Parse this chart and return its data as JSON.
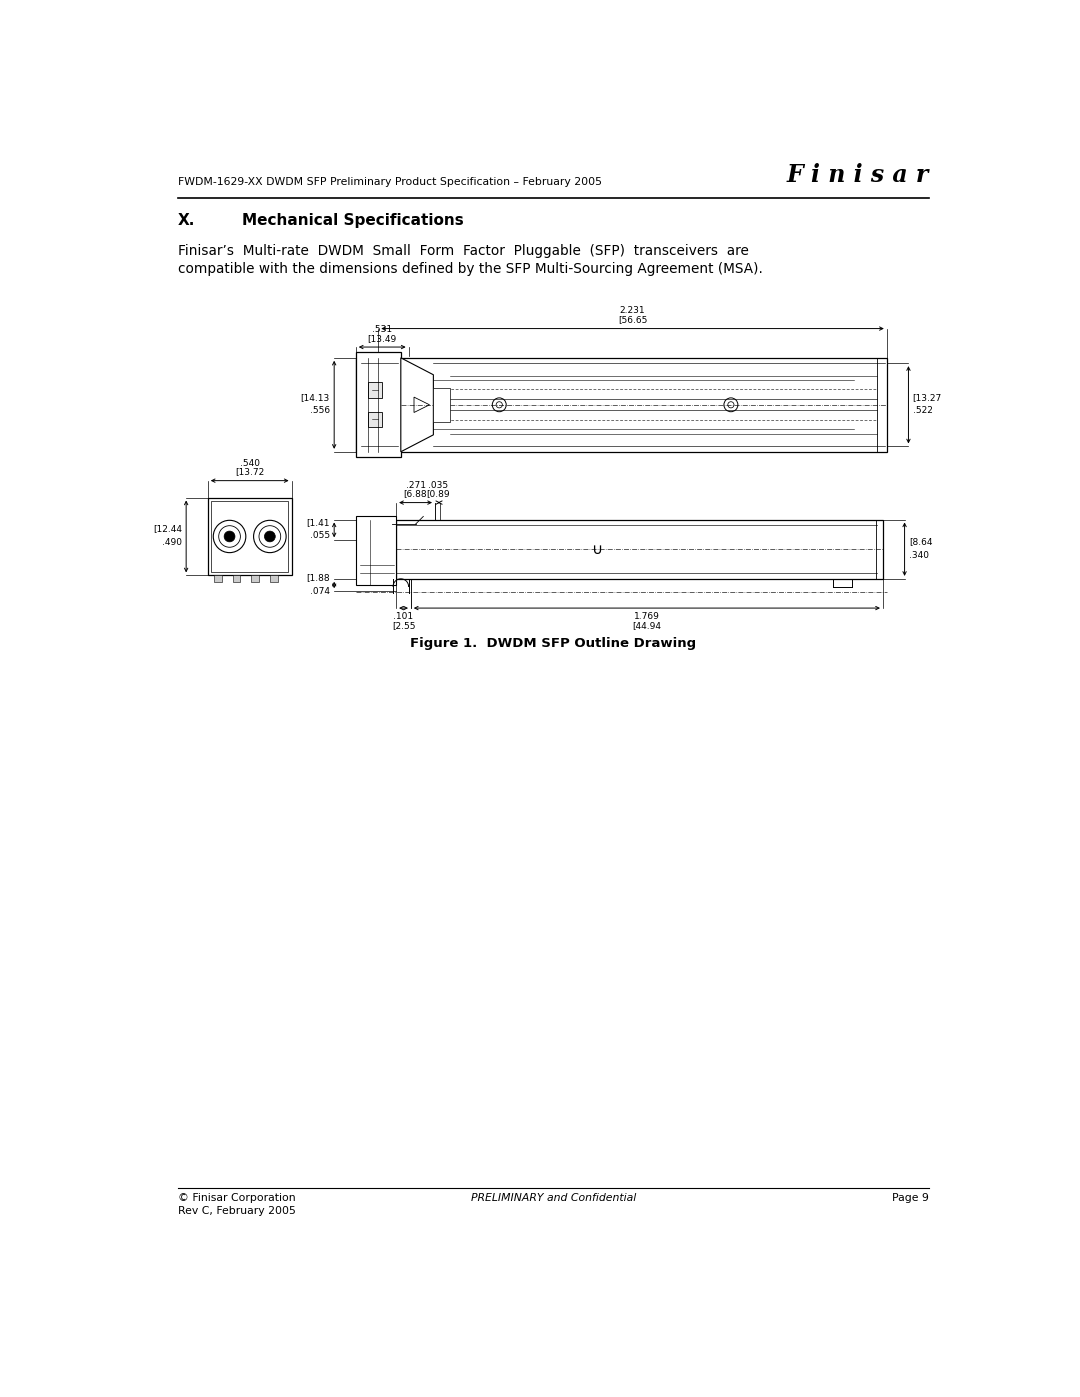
{
  "page_width": 10.8,
  "page_height": 13.97,
  "bg_color": "#ffffff",
  "header_text": "FWDM-1629-XX DWDM SFP Preliminary Product Specification – February 2005",
  "header_logo": "F i n i s a r",
  "section_title": "X.",
  "section_title2": "Mechanical Specifications",
  "body_line1": "Finisar’s  Multi-rate  DWDM  Small  Form  Factor  Pluggable  (SFP)  transceivers  are",
  "body_line2": "compatible with the dimensions defined by the SFP Multi-Sourcing Agreement (MSA).",
  "figure_caption": "Figure 1.  DWDM SFP Outline Drawing",
  "footer_left1": "© Finisar Corporation",
  "footer_left2": "Rev C, February 2005",
  "footer_center": "PRELIMINARY and Confidential",
  "footer_right": "Page 9",
  "dims": {
    "top_length_mm": "56.65",
    "top_length_in": "2.231",
    "top_conn_mm": "13.49",
    "top_conn_in": ".531",
    "left_h_mm": "14.13",
    "left_h_in": ".556",
    "right_h_mm": "13.27",
    "right_h_in": ".522",
    "side_w_mm": "13.72",
    "side_w_in": ".540",
    "side_h_mm": "12.44",
    "side_h_in": ".490",
    "bv_lh_mm": "1.41",
    "bv_lh_in": ".055",
    "bv_latch_mm": "6.88",
    "bv_latch_in": ".271",
    "bv_notch_mm": "0.89",
    "bv_notch_in": ".035",
    "bv_rh_mm": "8.64",
    "bv_rh_in": ".340",
    "bv_base_mm": "1.88",
    "bv_base_in": ".074",
    "bv_off_mm": "2.55",
    "bv_off_in": ".101",
    "bv_body_mm": "44.94",
    "bv_body_in": "1.769"
  }
}
